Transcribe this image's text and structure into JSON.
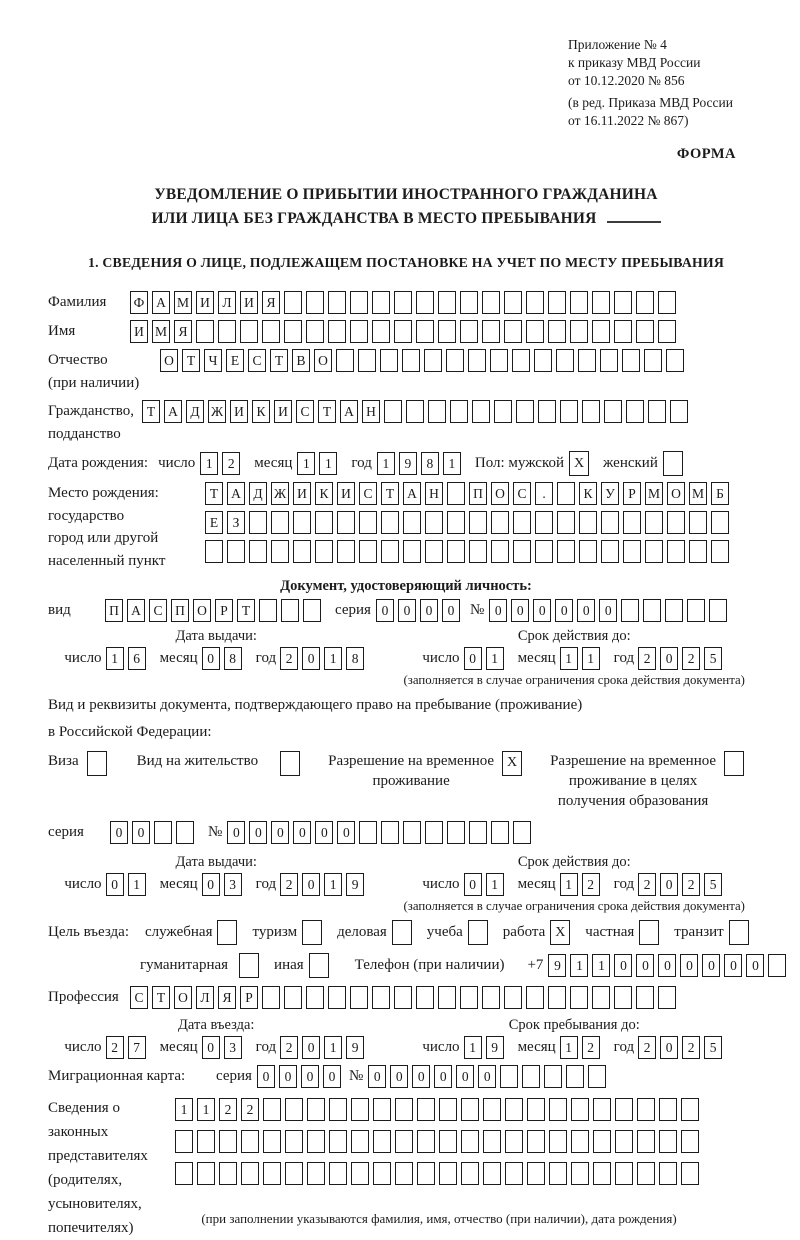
{
  "page": {
    "header": [
      "Приложение № 4",
      "к приказу МВД России",
      "от 10.12.2020 № 856",
      "(в ред. Приказа МВД России",
      "от 16.11.2022 № 867)"
    ],
    "forma": "ФОРМА",
    "title1": "УВЕДОМЛЕНИЕ О ПРИБЫТИИ ИНОСТРАННОГО ГРАЖДАНИНА",
    "title2": "ИЛИ ЛИЦА БЕЗ ГРАЖДАНСТВА В МЕСТО ПРЕБЫВАНИЯ",
    "section1": "1. СВЕДЕНИЯ О ЛИЦЕ, ПОДЛЕЖАЩЕМ ПОСТАНОВКЕ НА УЧЕТ ПО МЕСТУ ПРЕБЫВАНИЯ"
  },
  "labels": {
    "surname": "Фамилия",
    "name": "Имя",
    "patronymic1": "Отчество",
    "patronymic2": "(при наличии)",
    "citizenship1": "Гражданство,",
    "citizenship2": "подданство",
    "birthdate": "Дата рождения:",
    "day": "число",
    "month": "месяц",
    "year": "год",
    "sex_male": "Пол: мужской",
    "sex_female": "женский",
    "birthplace1": "Место рождения:",
    "birthplace2": "государство",
    "birthplace3": "город или другой",
    "birthplace4": "населенный пункт",
    "iddoc_header": "Документ, удостоверяющий личность:",
    "kind": "вид",
    "series": "серия",
    "num": "№",
    "issue_date": "Дата выдачи:",
    "valid_until": "Срок действия до:",
    "valid_note": "(заполняется в случае ограничения срока действия документа)",
    "residence_line1": "Вид и реквизиты документа, подтверждающего право на пребывание (проживание)",
    "residence_line2": "в Российской Федерации:",
    "visa": "Виза",
    "vid": "Вид на жительство",
    "rvp1": "Разрешение на временное",
    "rvp2": "проживание",
    "rvpedu1": "Разрешение на временное",
    "rvpedu2": "проживание в целях",
    "rvpedu3": "получения образования",
    "purpose": "Цель въезда:",
    "official": "служебная",
    "tourism": "туризм",
    "business": "деловая",
    "study": "учеба",
    "work": "работа",
    "private": "частная",
    "transit": "транзит",
    "humanitarian": "гуманитарная",
    "other": "иная",
    "phone": "Телефон (при наличии)",
    "plus7": "+7",
    "profession": "Профессия",
    "entry_date": "Дата въезда:",
    "stay_until": "Срок пребывания до:",
    "migcard": "Миграционная карта:",
    "guardians1": "Сведения о",
    "guardians2": "законных",
    "guardians3": "представителях",
    "guardians4": "(родителях,",
    "guardians5": "усыновителях,",
    "guardians6": "попечителях)",
    "guardians_note": "(при заполнении указываются фамилия, имя, отчество (при наличии), дата рождения)"
  },
  "fields": {
    "surname": {
      "v": "ФАМИЛИЯ",
      "n": 25
    },
    "name": {
      "v": "ИМЯ",
      "n": 25
    },
    "patronymic": {
      "v": "ОТЧЕСТВО",
      "n": 24
    },
    "citizenship": {
      "v": "ТАДЖИКИСТАН",
      "n": 25
    },
    "birth": {
      "day": {
        "v": "12",
        "n": 2
      },
      "month": {
        "v": "11",
        "n": 2
      },
      "year": {
        "v": "1981",
        "n": 4
      },
      "male": {
        "v": "X",
        "n": 1
      },
      "female": {
        "v": "",
        "n": 1
      }
    },
    "birthplace": {
      "row1": {
        "v": "ТАДЖИКИСТАН ПОС. КУРМОМБ",
        "n": 24
      },
      "row2": {
        "v": "ЕЗ",
        "n": 24
      },
      "row3": {
        "v": "",
        "n": 24
      }
    },
    "iddoc": {
      "kind": {
        "v": "ПАСПОРТ",
        "n": 10
      },
      "series": {
        "v": "0000",
        "n": 4
      },
      "number": {
        "v": "000000",
        "n": 11
      },
      "issue": {
        "day": {
          "v": "16",
          "n": 2
        },
        "month": {
          "v": "08",
          "n": 2
        },
        "year": {
          "v": "2018",
          "n": 4
        }
      },
      "valid": {
        "day": {
          "v": "01",
          "n": 2
        },
        "month": {
          "v": "11",
          "n": 2
        },
        "year": {
          "v": "2025",
          "n": 4
        }
      }
    },
    "residence": {
      "visa": {
        "v": "",
        "n": 1
      },
      "vid": {
        "v": "",
        "n": 1
      },
      "rvp": {
        "v": "X",
        "n": 1
      },
      "rvp_edu": {
        "v": "",
        "n": 1
      },
      "series": {
        "v": "00",
        "n": 4
      },
      "number": {
        "v": "000000",
        "n": 14
      },
      "issue": {
        "day": {
          "v": "01",
          "n": 2
        },
        "month": {
          "v": "03",
          "n": 2
        },
        "year": {
          "v": "2019",
          "n": 4
        }
      },
      "valid": {
        "day": {
          "v": "01",
          "n": 2
        },
        "month": {
          "v": "12",
          "n": 2
        },
        "year": {
          "v": "2025",
          "n": 4
        }
      }
    },
    "purpose": {
      "official": {
        "v": "",
        "n": 1
      },
      "tourism": {
        "v": "",
        "n": 1
      },
      "business": {
        "v": "",
        "n": 1
      },
      "study": {
        "v": "",
        "n": 1
      },
      "work": {
        "v": "X",
        "n": 1
      },
      "private": {
        "v": "",
        "n": 1
      },
      "transit": {
        "v": "",
        "n": 1
      },
      "humanitarian": {
        "v": "",
        "n": 1
      },
      "other": {
        "v": "",
        "n": 1
      }
    },
    "phone": {
      "v": "9110000000",
      "n": 11
    },
    "profession": {
      "v": "СТОЛЯР",
      "n": 25
    },
    "entry": {
      "day": {
        "v": "27",
        "n": 2
      },
      "month": {
        "v": "03",
        "n": 2
      },
      "year": {
        "v": "2019",
        "n": 4
      }
    },
    "stay": {
      "day": {
        "v": "19",
        "n": 2
      },
      "month": {
        "v": "12",
        "n": 2
      },
      "year": {
        "v": "2025",
        "n": 4
      }
    },
    "migcard": {
      "series": {
        "v": "0000",
        "n": 4
      },
      "number": {
        "v": "000000",
        "n": 11
      }
    },
    "guardians": {
      "row1": {
        "v": "1122",
        "n": 24
      },
      "row2": {
        "v": "",
        "n": 24
      },
      "row3": {
        "v": "",
        "n": 24
      }
    }
  }
}
